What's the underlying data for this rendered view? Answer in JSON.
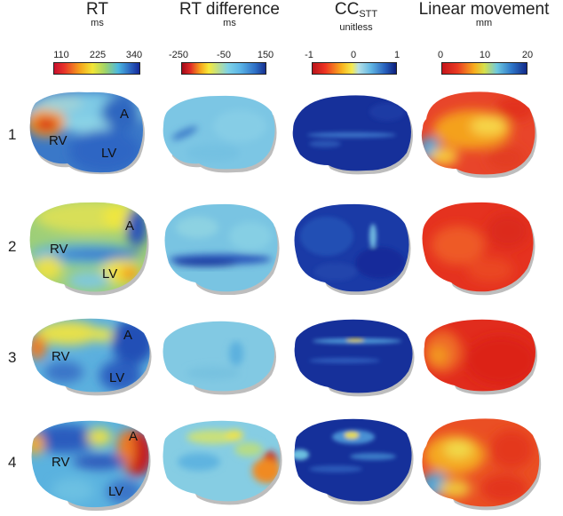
{
  "columns": [
    {
      "title": "RT",
      "subscript": "",
      "unit": "ms",
      "ticks": [
        "110",
        "225",
        "340"
      ]
    },
    {
      "title": "RT difference",
      "subscript": "",
      "unit": "ms",
      "ticks": [
        "-250",
        "-50",
        "150"
      ]
    },
    {
      "title": "CC",
      "subscript": "STT",
      "unit": "unitless",
      "ticks": [
        "-1",
        "0",
        "1"
      ]
    },
    {
      "title": "Linear movement",
      "subscript": "",
      "unit": "mm",
      "ticks": [
        "0",
        "10",
        "20"
      ]
    }
  ],
  "rows": [
    "1",
    "2",
    "3",
    "4"
  ],
  "region_labels": {
    "rv": "RV",
    "lv": "LV",
    "a": "A"
  }
}
